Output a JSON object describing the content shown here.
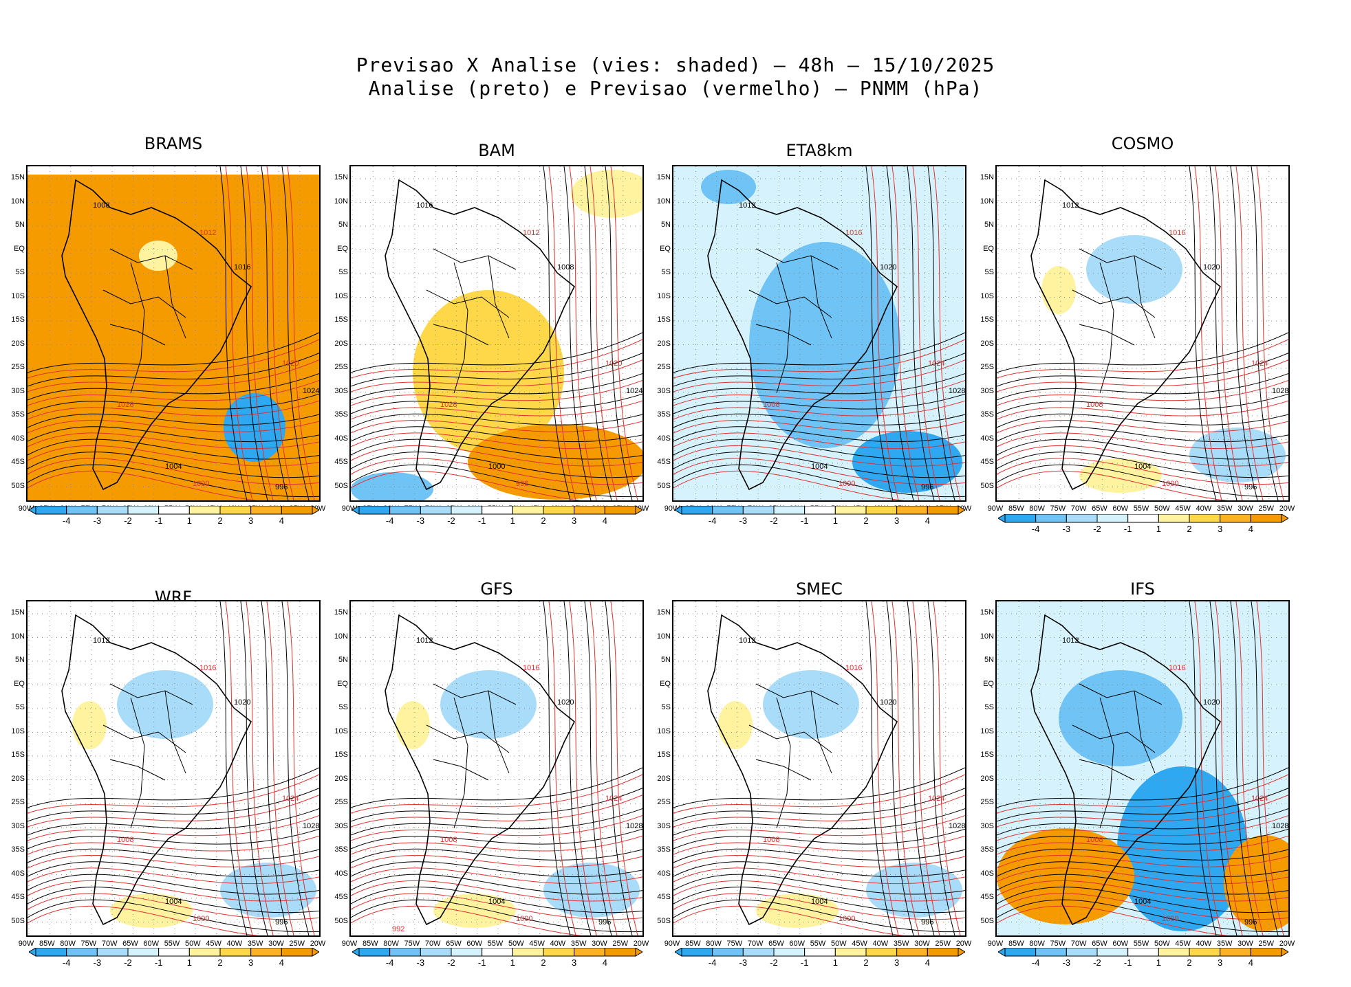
{
  "header": {
    "line1": "Previsao X Analise (vies: shaded) – 48h – 15/10/2025",
    "line2": "Analise (preto) e Previsao (vermelho) – PNMM (hPa)"
  },
  "lat_ticks": [
    "15N",
    "10N",
    "5N",
    "EQ",
    "5S",
    "10S",
    "15S",
    "20S",
    "25S",
    "30S",
    "35S",
    "40S",
    "45S",
    "50S"
  ],
  "lon_ticks": [
    "90W",
    "85W",
    "80W",
    "75W",
    "70W",
    "65W",
    "60W",
    "55W",
    "50W",
    "45W",
    "40W",
    "35W",
    "30W",
    "25W",
    "20W"
  ],
  "colorbar": {
    "labels": [
      "-4",
      "-3",
      "-2",
      "-1",
      "1",
      "2",
      "3",
      "4"
    ],
    "colors": [
      "#2ea8f0",
      "#6fc3f5",
      "#a8dcf8",
      "#d6f2fc",
      "#ffffff",
      "#fff3a0",
      "#ffd84a",
      "#ffb224",
      "#f59b00"
    ]
  },
  "panels": [
    {
      "name": "BRAMS",
      "mode": "orange",
      "labels": [
        [
          "1008",
          "1012",
          "1016",
          "1020",
          "1024",
          "1028",
          "1004",
          "1000",
          "996"
        ]
      ]
    },
    {
      "name": "BAM",
      "mode": "mixed",
      "labels": [
        [
          "1016",
          "1012",
          "1008",
          "1020",
          "1024",
          "1028",
          "1000",
          "996"
        ]
      ]
    },
    {
      "name": "ETA8km",
      "mode": "blue",
      "labels": [
        [
          "1012",
          "1016",
          "1020",
          "1024",
          "1028",
          "1008",
          "1004",
          "1000",
          "996"
        ]
      ]
    },
    {
      "name": "COSMO",
      "mode": "light",
      "labels": [
        [
          "1012",
          "1016",
          "1020",
          "1024",
          "1028",
          "1008",
          "1004",
          "1000",
          "996"
        ]
      ]
    },
    {
      "name": "WRF",
      "mode": "light",
      "labels": [
        [
          "1012",
          "1016",
          "1020",
          "1024",
          "1028",
          "1008",
          "1004",
          "1000",
          "996"
        ]
      ]
    },
    {
      "name": "GFS",
      "mode": "light",
      "labels": [
        [
          "1012",
          "1016",
          "1020",
          "1024",
          "1028",
          "1008",
          "1004",
          "1000",
          "996",
          "992"
        ]
      ]
    },
    {
      "name": "SMEC",
      "mode": "light",
      "labels": [
        [
          "1012",
          "1016",
          "1020",
          "1024",
          "1028",
          "1008",
          "1004",
          "1000",
          "996"
        ]
      ]
    },
    {
      "name": "IFS",
      "mode": "ifs",
      "labels": [
        [
          "1012",
          "1016",
          "1020",
          "1024",
          "1028",
          "1008",
          "1004",
          "1000",
          "996"
        ]
      ]
    }
  ],
  "contour_labels": {
    "analysis": [
      "1012",
      "1016",
      "1020",
      "1024",
      "1028",
      "1008",
      "1004",
      "1000",
      "996"
    ],
    "forecast": [
      "1012",
      "1016",
      "1020",
      "1024",
      "1008",
      "1004",
      "1000"
    ]
  }
}
